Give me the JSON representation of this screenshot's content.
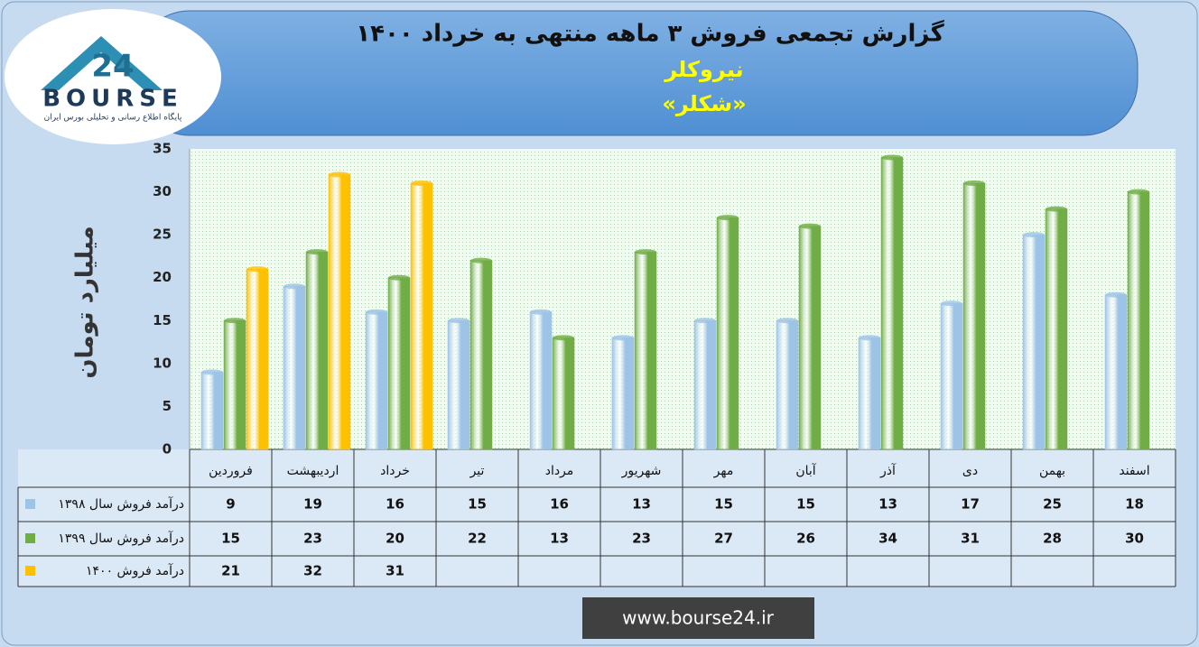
{
  "logo": {
    "mark": "24",
    "name": "BOURSE",
    "tagline": "پایگاه اطلاع رسانی و تحلیلی بورس ایران"
  },
  "footer": {
    "url": "www.bourse24.ir"
  },
  "chart_data": {
    "type": "bar",
    "title": "گزارش تجمعی فروش ۳ ماهه منتهی به خرداد ۱۴۰۰",
    "subtitle": "نیروکلر",
    "symbol": "«شکلر»",
    "y_label": "میلیارد تومان",
    "categories": [
      "فروردین",
      "اردیبهشت",
      "خرداد",
      "تیر",
      "مرداد",
      "شهریور",
      "مهر",
      "آبان",
      "آذر",
      "دی",
      "بهمن",
      "اسفند"
    ],
    "series": [
      {
        "name": "درآمد فروش سال ۱۳۹۸",
        "color": "#9dc3e6",
        "values": [
          9,
          19,
          16,
          15,
          16,
          13,
          15,
          15,
          13,
          17,
          25,
          18
        ]
      },
      {
        "name": "درآمد فروش سال ۱۳۹۹",
        "color": "#70ad47",
        "values": [
          15,
          23,
          20,
          22,
          13,
          23,
          27,
          26,
          34,
          31,
          28,
          30
        ]
      },
      {
        "name": "درآمد فروش ۱۴۰۰",
        "color": "#ffc000",
        "values": [
          21,
          32,
          31,
          null,
          null,
          null,
          null,
          null,
          null,
          null,
          null,
          null
        ]
      }
    ],
    "ylim": [
      0,
      35
    ],
    "yticks": [
      0,
      5,
      10,
      15,
      20,
      25,
      30,
      35
    ],
    "grid": false
  }
}
